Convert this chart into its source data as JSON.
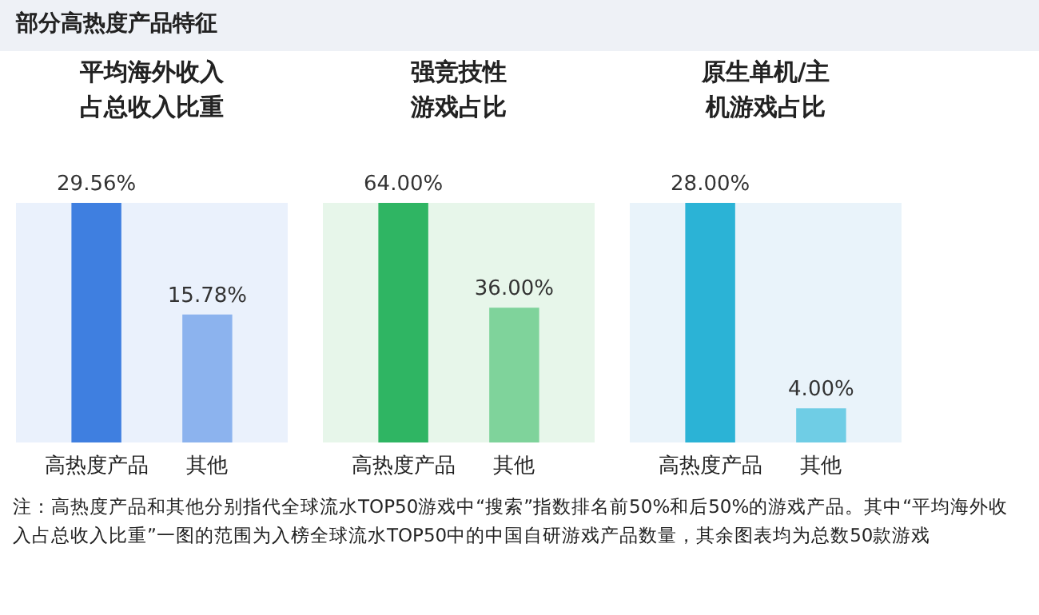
{
  "chart_data": [
    {
      "type": "bar",
      "title": "平均海外收入占总收入比重",
      "categories": [
        "高热度产品",
        "其他"
      ],
      "values": [
        29.56,
        15.78
      ],
      "value_labels": [
        "29.56%",
        "15.78%"
      ],
      "colors": [
        "#3f7fe0",
        "#8cb3ee"
      ],
      "annotations": [
        "部分高热度产品特征"
      ]
    },
    {
      "type": "bar",
      "title": "强竞技性游戏占比",
      "categories": [
        "高热度产品",
        "其他"
      ],
      "values": [
        64.0,
        36.0
      ],
      "value_labels": [
        "64.00%",
        "36.00%"
      ],
      "colors": [
        "#2fb563",
        "#7fd39b"
      ]
    },
    {
      "type": "bar",
      "title": "原生单机/主机游戏占比",
      "categories": [
        "高热度产品",
        "其他"
      ],
      "values": [
        28.0,
        4.0
      ],
      "value_labels": [
        "28.00%",
        "4.00%"
      ],
      "colors": [
        "#2bb3d6",
        "#6fcde5"
      ],
      "annotations": [
        "注：高热度产品和其他分别指代全球流水TOP50游戏中“搜索”指数排名前50%和后50%的游戏产品。其中“平均海外收入占总收入比重”一图的范围为入榜全球流水TOP50中的中国自研游戏产品数量，其余图表均为总数50款游戏"
      ]
    }
  ]
}
